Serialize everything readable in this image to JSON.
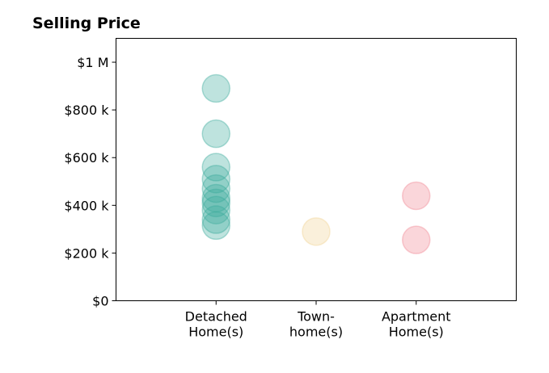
{
  "chart_data": {
    "type": "scatter",
    "title": "Selling Price",
    "xlabel": "",
    "ylabel": "",
    "categories": [
      [
        "Detached",
        "Home(s)"
      ],
      [
        "Town-",
        "home(s)"
      ],
      [
        "Apartment",
        "Home(s)"
      ]
    ],
    "xlim": [
      -1,
      3
    ],
    "ylim": [
      0,
      1100000
    ],
    "yticks": [
      0,
      200000,
      400000,
      600000,
      800000,
      1000000
    ],
    "ytick_labels": [
      "$0",
      "$200 k",
      "$400 k",
      "$600 k",
      "$800 k",
      "$1 M"
    ],
    "grid": false,
    "series": [
      {
        "color": "#3aa99a",
        "category_index": 0,
        "values": [
          890000,
          700000,
          560000,
          510000,
          470000,
          430000,
          410000,
          380000,
          340000,
          315000
        ]
      },
      {
        "color": "#f1d291",
        "category_index": 1,
        "values": [
          290000
        ]
      },
      {
        "color": "#ef8490",
        "category_index": 2,
        "values": [
          440000,
          255000
        ]
      }
    ]
  }
}
